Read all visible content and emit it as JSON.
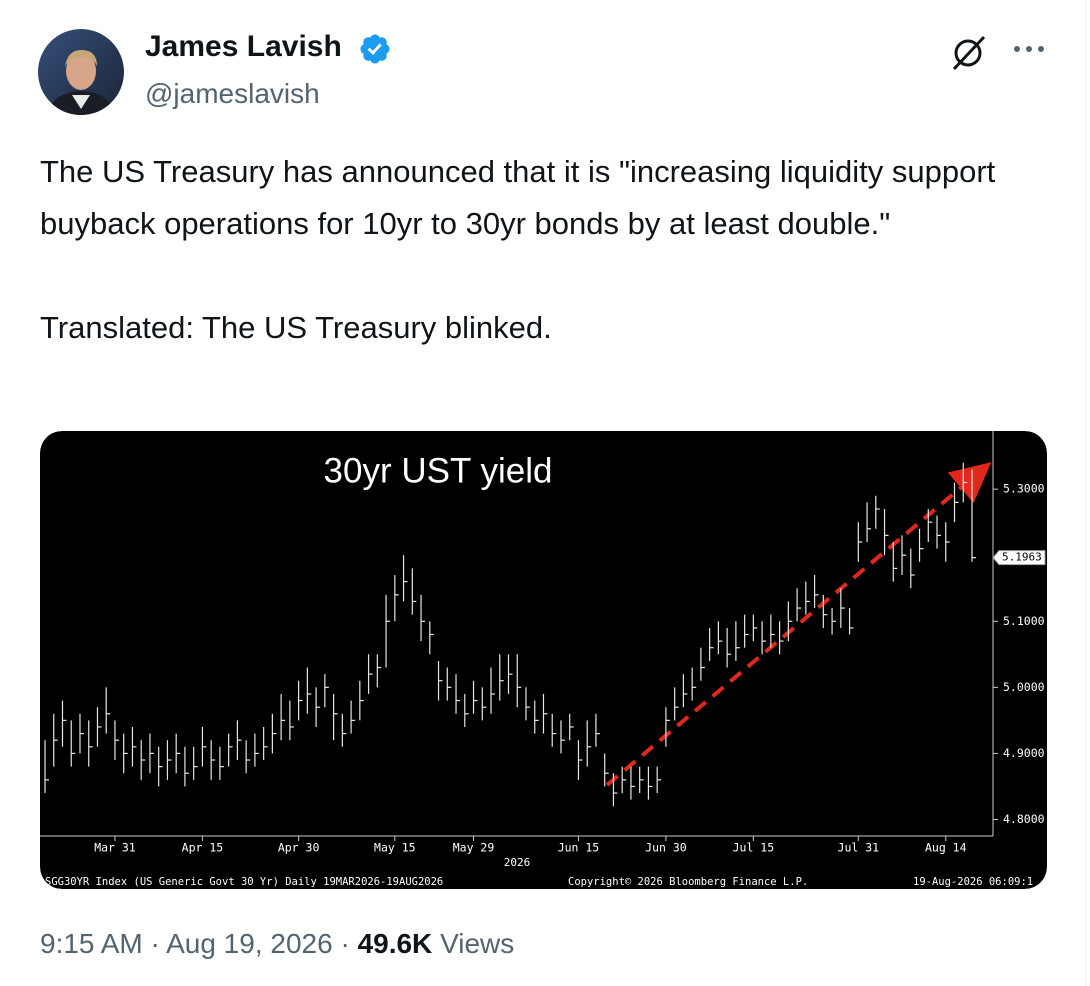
{
  "header": {
    "name": "James Lavish",
    "handle": "@jameslavish"
  },
  "post": {
    "paragraphs": [
      "The US Treasury has announced that it is \"increasing liquidity support buyback operations for 10yr to 30yr bonds by at least double.\"",
      "Translated: The US Treasury blinked."
    ]
  },
  "chart_data": {
    "type": "ohlc",
    "title": "30yr UST yield",
    "x_axis_year": "2026",
    "footer_left": "SGG30YR Index (US Generic Govt 30 Yr) Daily 19MAR2026-19AUG2026",
    "footer_center": "Copyright© 2026 Bloomberg Finance L.P.",
    "footer_right": "19-Aug-2026 06:09:1",
    "color": "#e6e6e6",
    "xlim": [
      0,
      106
    ],
    "xticks": [
      {
        "value": 8,
        "label": "Mar 31"
      },
      {
        "value": 18,
        "label": "Apr 15"
      },
      {
        "value": 29,
        "label": "Apr 30"
      },
      {
        "value": 40,
        "label": "May 15"
      },
      {
        "value": 49,
        "label": "May 29"
      },
      {
        "value": 61,
        "label": "Jun 15"
      },
      {
        "value": 71,
        "label": "Jun 30"
      },
      {
        "value": 81,
        "label": "Jul 15"
      },
      {
        "value": 93,
        "label": "Jul 31"
      },
      {
        "value": 103,
        "label": "Aug 14"
      }
    ],
    "ylim": [
      4.775,
      5.388
    ],
    "yticks": [
      {
        "value": 4.8,
        "label": "4.8000"
      },
      {
        "value": 4.9,
        "label": "4.9000"
      },
      {
        "value": 5.0,
        "label": "5.0000"
      },
      {
        "value": 5.1,
        "label": "5.1000"
      },
      {
        "value": 5.3,
        "label": "5.3000"
      }
    ],
    "high": [
      4.92,
      4.96,
      4.98,
      4.95,
      4.96,
      4.95,
      4.97,
      5.0,
      4.95,
      4.93,
      4.94,
      4.92,
      4.93,
      4.91,
      4.92,
      4.93,
      4.91,
      4.91,
      4.94,
      4.92,
      4.91,
      4.93,
      4.95,
      4.92,
      4.93,
      4.94,
      4.96,
      4.99,
      4.98,
      5.01,
      5.03,
      5.0,
      5.02,
      4.99,
      4.96,
      4.98,
      5.01,
      5.05,
      5.05,
      5.14,
      5.17,
      5.2,
      5.18,
      5.14,
      5.1,
      5.04,
      5.03,
      5.02,
      4.99,
      5.01,
      5.0,
      5.03,
      5.05,
      5.05,
      5.05,
      5.0,
      4.98,
      4.99,
      4.96,
      4.95,
      4.96,
      4.92,
      4.95,
      4.96,
      4.9,
      4.87,
      4.88,
      4.88,
      4.88,
      4.88,
      4.88,
      4.97,
      5.0,
      5.02,
      5.03,
      5.06,
      5.09,
      5.1,
      5.09,
      5.1,
      5.11,
      5.11,
      5.1,
      5.11,
      5.1,
      5.13,
      5.15,
      5.16,
      5.17,
      5.14,
      5.12,
      5.15,
      5.12,
      5.25,
      5.28,
      5.29,
      5.27,
      5.22,
      5.23,
      5.21,
      5.24,
      5.27,
      5.26,
      5.25,
      5.31,
      5.34,
      5.33
    ],
    "low": [
      4.84,
      4.88,
      4.91,
      4.88,
      4.9,
      4.88,
      4.91,
      4.93,
      4.89,
      4.87,
      4.88,
      4.86,
      4.87,
      4.85,
      4.86,
      4.87,
      4.85,
      4.86,
      4.88,
      4.86,
      4.86,
      4.88,
      4.89,
      4.87,
      4.88,
      4.89,
      4.9,
      4.92,
      4.92,
      4.95,
      4.96,
      4.94,
      4.97,
      4.92,
      4.91,
      4.93,
      4.95,
      4.99,
      5.0,
      5.03,
      5.1,
      5.13,
      5.11,
      5.07,
      5.05,
      4.98,
      4.98,
      4.96,
      4.94,
      4.96,
      4.95,
      4.96,
      4.98,
      4.99,
      4.97,
      4.95,
      4.93,
      4.93,
      4.91,
      4.9,
      4.92,
      4.86,
      4.88,
      4.91,
      4.85,
      4.82,
      4.84,
      4.83,
      4.84,
      4.83,
      4.84,
      4.91,
      4.95,
      4.97,
      4.98,
      5.01,
      5.04,
      5.05,
      5.03,
      5.04,
      5.06,
      5.07,
      5.05,
      5.06,
      5.05,
      5.07,
      5.1,
      5.11,
      5.12,
      5.09,
      5.08,
      5.09,
      5.08,
      5.19,
      5.22,
      5.24,
      5.2,
      5.16,
      5.17,
      5.15,
      5.19,
      5.22,
      5.21,
      5.19,
      5.25,
      5.28,
      5.19
    ],
    "close": [
      4.86,
      4.92,
      4.95,
      4.9,
      4.93,
      4.91,
      4.94,
      4.96,
      4.92,
      4.9,
      4.91,
      4.89,
      4.9,
      4.88,
      4.89,
      4.9,
      4.87,
      4.88,
      4.91,
      4.89,
      4.88,
      4.91,
      4.92,
      4.89,
      4.9,
      4.91,
      4.93,
      4.95,
      4.94,
      4.98,
      4.99,
      4.97,
      5.0,
      4.96,
      4.93,
      4.95,
      4.98,
      5.02,
      5.03,
      5.1,
      5.14,
      5.16,
      5.13,
      5.1,
      5.08,
      5.01,
      5.0,
      4.98,
      4.96,
      4.98,
      4.97,
      4.99,
      5.01,
      5.02,
      5.0,
      4.97,
      4.95,
      4.96,
      4.93,
      4.92,
      4.94,
      4.89,
      4.91,
      4.93,
      4.87,
      4.84,
      4.86,
      4.85,
      4.86,
      4.85,
      4.86,
      4.95,
      4.97,
      4.99,
      5.0,
      5.03,
      5.06,
      5.07,
      5.05,
      5.06,
      5.08,
      5.09,
      5.07,
      5.08,
      5.07,
      5.1,
      5.12,
      5.13,
      5.14,
      5.11,
      5.1,
      5.12,
      5.09,
      5.22,
      5.24,
      5.27,
      5.23,
      5.18,
      5.2,
      5.17,
      5.21,
      5.25,
      5.23,
      5.22,
      5.28,
      5.31,
      5.1963
    ]
  },
  "meta": {
    "time": "9:15 AM",
    "separator": "·",
    "date": "Aug 19, 2026",
    "views_count": "49.6K",
    "views_label": "Views"
  }
}
